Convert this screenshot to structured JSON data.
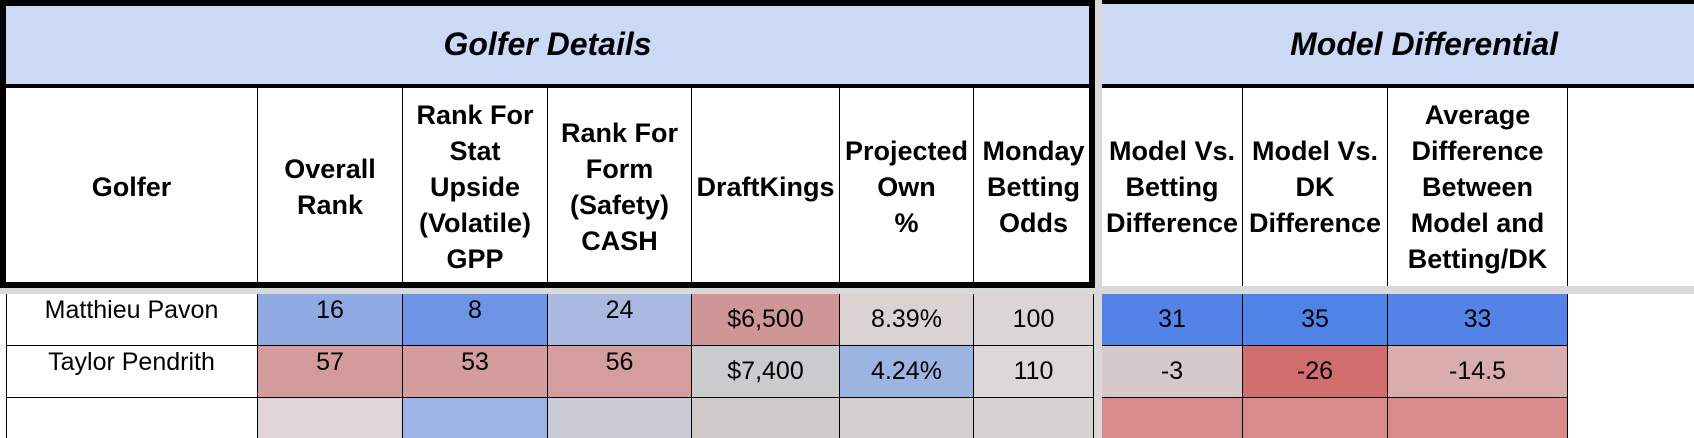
{
  "bands": {
    "golfer_details": "Golfer Details",
    "model_differential": "Model Differential"
  },
  "columns": {
    "golfer": [
      "Golfer"
    ],
    "overall_rank": [
      "Overall",
      "Rank"
    ],
    "rank_stat": [
      "Rank For",
      "Stat",
      "Upside",
      "(Volatile)",
      "GPP"
    ],
    "rank_form": [
      "Rank For",
      "Form",
      "(Safety)",
      "CASH"
    ],
    "draftkings": [
      "DraftKings"
    ],
    "projected_own": [
      "Projected",
      "Own",
      "%"
    ],
    "monday_odds": [
      "Monday",
      "Betting",
      "Odds"
    ],
    "model_vs_betting": [
      "Model Vs.",
      "Betting",
      "Difference"
    ],
    "model_vs_dk": [
      "Model Vs.",
      "DK",
      "Difference"
    ],
    "avg_difference": [
      "Average",
      "Difference",
      "Between",
      "Model and",
      "Betting/DK"
    ]
  },
  "rows": [
    {
      "golfer": "Matthieu Pavon",
      "overall_rank": "16",
      "rank_stat": "8",
      "rank_form": "24",
      "draftkings": "$6,500",
      "projected_own": "8.39%",
      "monday_odds": "100",
      "model_vs_betting": "31",
      "model_vs_dk": "35",
      "avg_difference": "33"
    },
    {
      "golfer": "Taylor Pendrith",
      "overall_rank": "57",
      "rank_stat": "53",
      "rank_form": "56",
      "draftkings": "$7,400",
      "projected_own": "4.24%",
      "monday_odds": "110",
      "model_vs_betting": "-3",
      "model_vs_dk": "-26",
      "avg_difference": "-14.5"
    }
  ],
  "cell_colors": {
    "row0": {
      "overall_rank": "#90aae4",
      "rank_stat": "#6d94e6",
      "rank_form": "#a9b9e0",
      "draftkings": "#cf9698",
      "projected_own": "#dbd2d2",
      "monday_odds": "#dbd6d5",
      "model_vs_betting": "#5383e6",
      "model_vs_dk": "#4f82e6",
      "avg_difference": "#5383e6"
    },
    "row1": {
      "overall_rank": "#d59b9c",
      "rank_stat": "#d49c9d",
      "rank_form": "#d69d9e",
      "draftkings": "#cacbcd",
      "projected_own": "#9cb4e2",
      "monday_odds": "#dcd8d6",
      "model_vs_betting": "#d5c9c9",
      "model_vs_dk": "#d16d6e",
      "avg_difference": "#d9adad"
    },
    "row2_partial": {
      "overall_rank": "#e0d4d4",
      "rank_stat": "#9db4e6",
      "rank_form": "#c9cbd6",
      "draftkings": "#cfc9c9",
      "projected_own": "#d6cfcf",
      "monday_odds": "#d8d2d1",
      "model_vs_betting": "#d98b8b",
      "model_vs_dk": "#d98b8b",
      "avg_difference": "#d98b8b"
    }
  }
}
